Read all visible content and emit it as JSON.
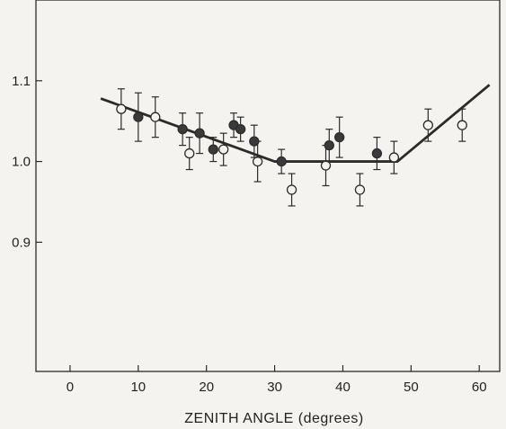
{
  "chart_data": {
    "type": "scatter",
    "title": "",
    "xlabel": "ZENITH ANGLE (degrees)",
    "ylabel": "",
    "xlim": [
      -5,
      63
    ],
    "ylim": [
      0.74,
      1.2
    ],
    "x_ticks": [
      0,
      10,
      20,
      30,
      40,
      50,
      60
    ],
    "y_ticks": [
      0.9,
      1.0,
      1.1
    ],
    "y_tick_labels": [
      "0.9",
      "1.0",
      "1.1"
    ],
    "grid": false,
    "series": [
      {
        "marker": "open-circle",
        "x": [
          7.5,
          12.5,
          17.5,
          22.5,
          27.5,
          32.5,
          37.5,
          42.5,
          47.5,
          52.5,
          57.5
        ],
        "y": [
          1.065,
          1.055,
          1.01,
          1.015,
          1.0,
          0.965,
          0.995,
          0.965,
          1.005,
          1.045,
          1.045
        ],
        "err": [
          0.025,
          0.025,
          0.02,
          0.02,
          0.025,
          0.02,
          0.025,
          0.02,
          0.02,
          0.02,
          0.02
        ]
      },
      {
        "marker": "filled-circle",
        "x": [
          10,
          16.5,
          19,
          21,
          24,
          25,
          27,
          31,
          38,
          39.5,
          45
        ],
        "y": [
          1.055,
          1.04,
          1.035,
          1.015,
          1.045,
          1.04,
          1.025,
          1.0,
          1.02,
          1.03,
          1.01
        ],
        "err": [
          0.03,
          0.02,
          0.025,
          0.015,
          0.015,
          0.015,
          0.02,
          0.015,
          0.02,
          0.025,
          0.02
        ]
      }
    ],
    "fit_line": {
      "x": [
        4.5,
        30,
        48,
        61.5
      ],
      "y": [
        1.078,
        1.0,
        1.0,
        1.095
      ]
    },
    "colors": {
      "ink": "#2b2b2b",
      "background": "#f4f3f0"
    }
  }
}
